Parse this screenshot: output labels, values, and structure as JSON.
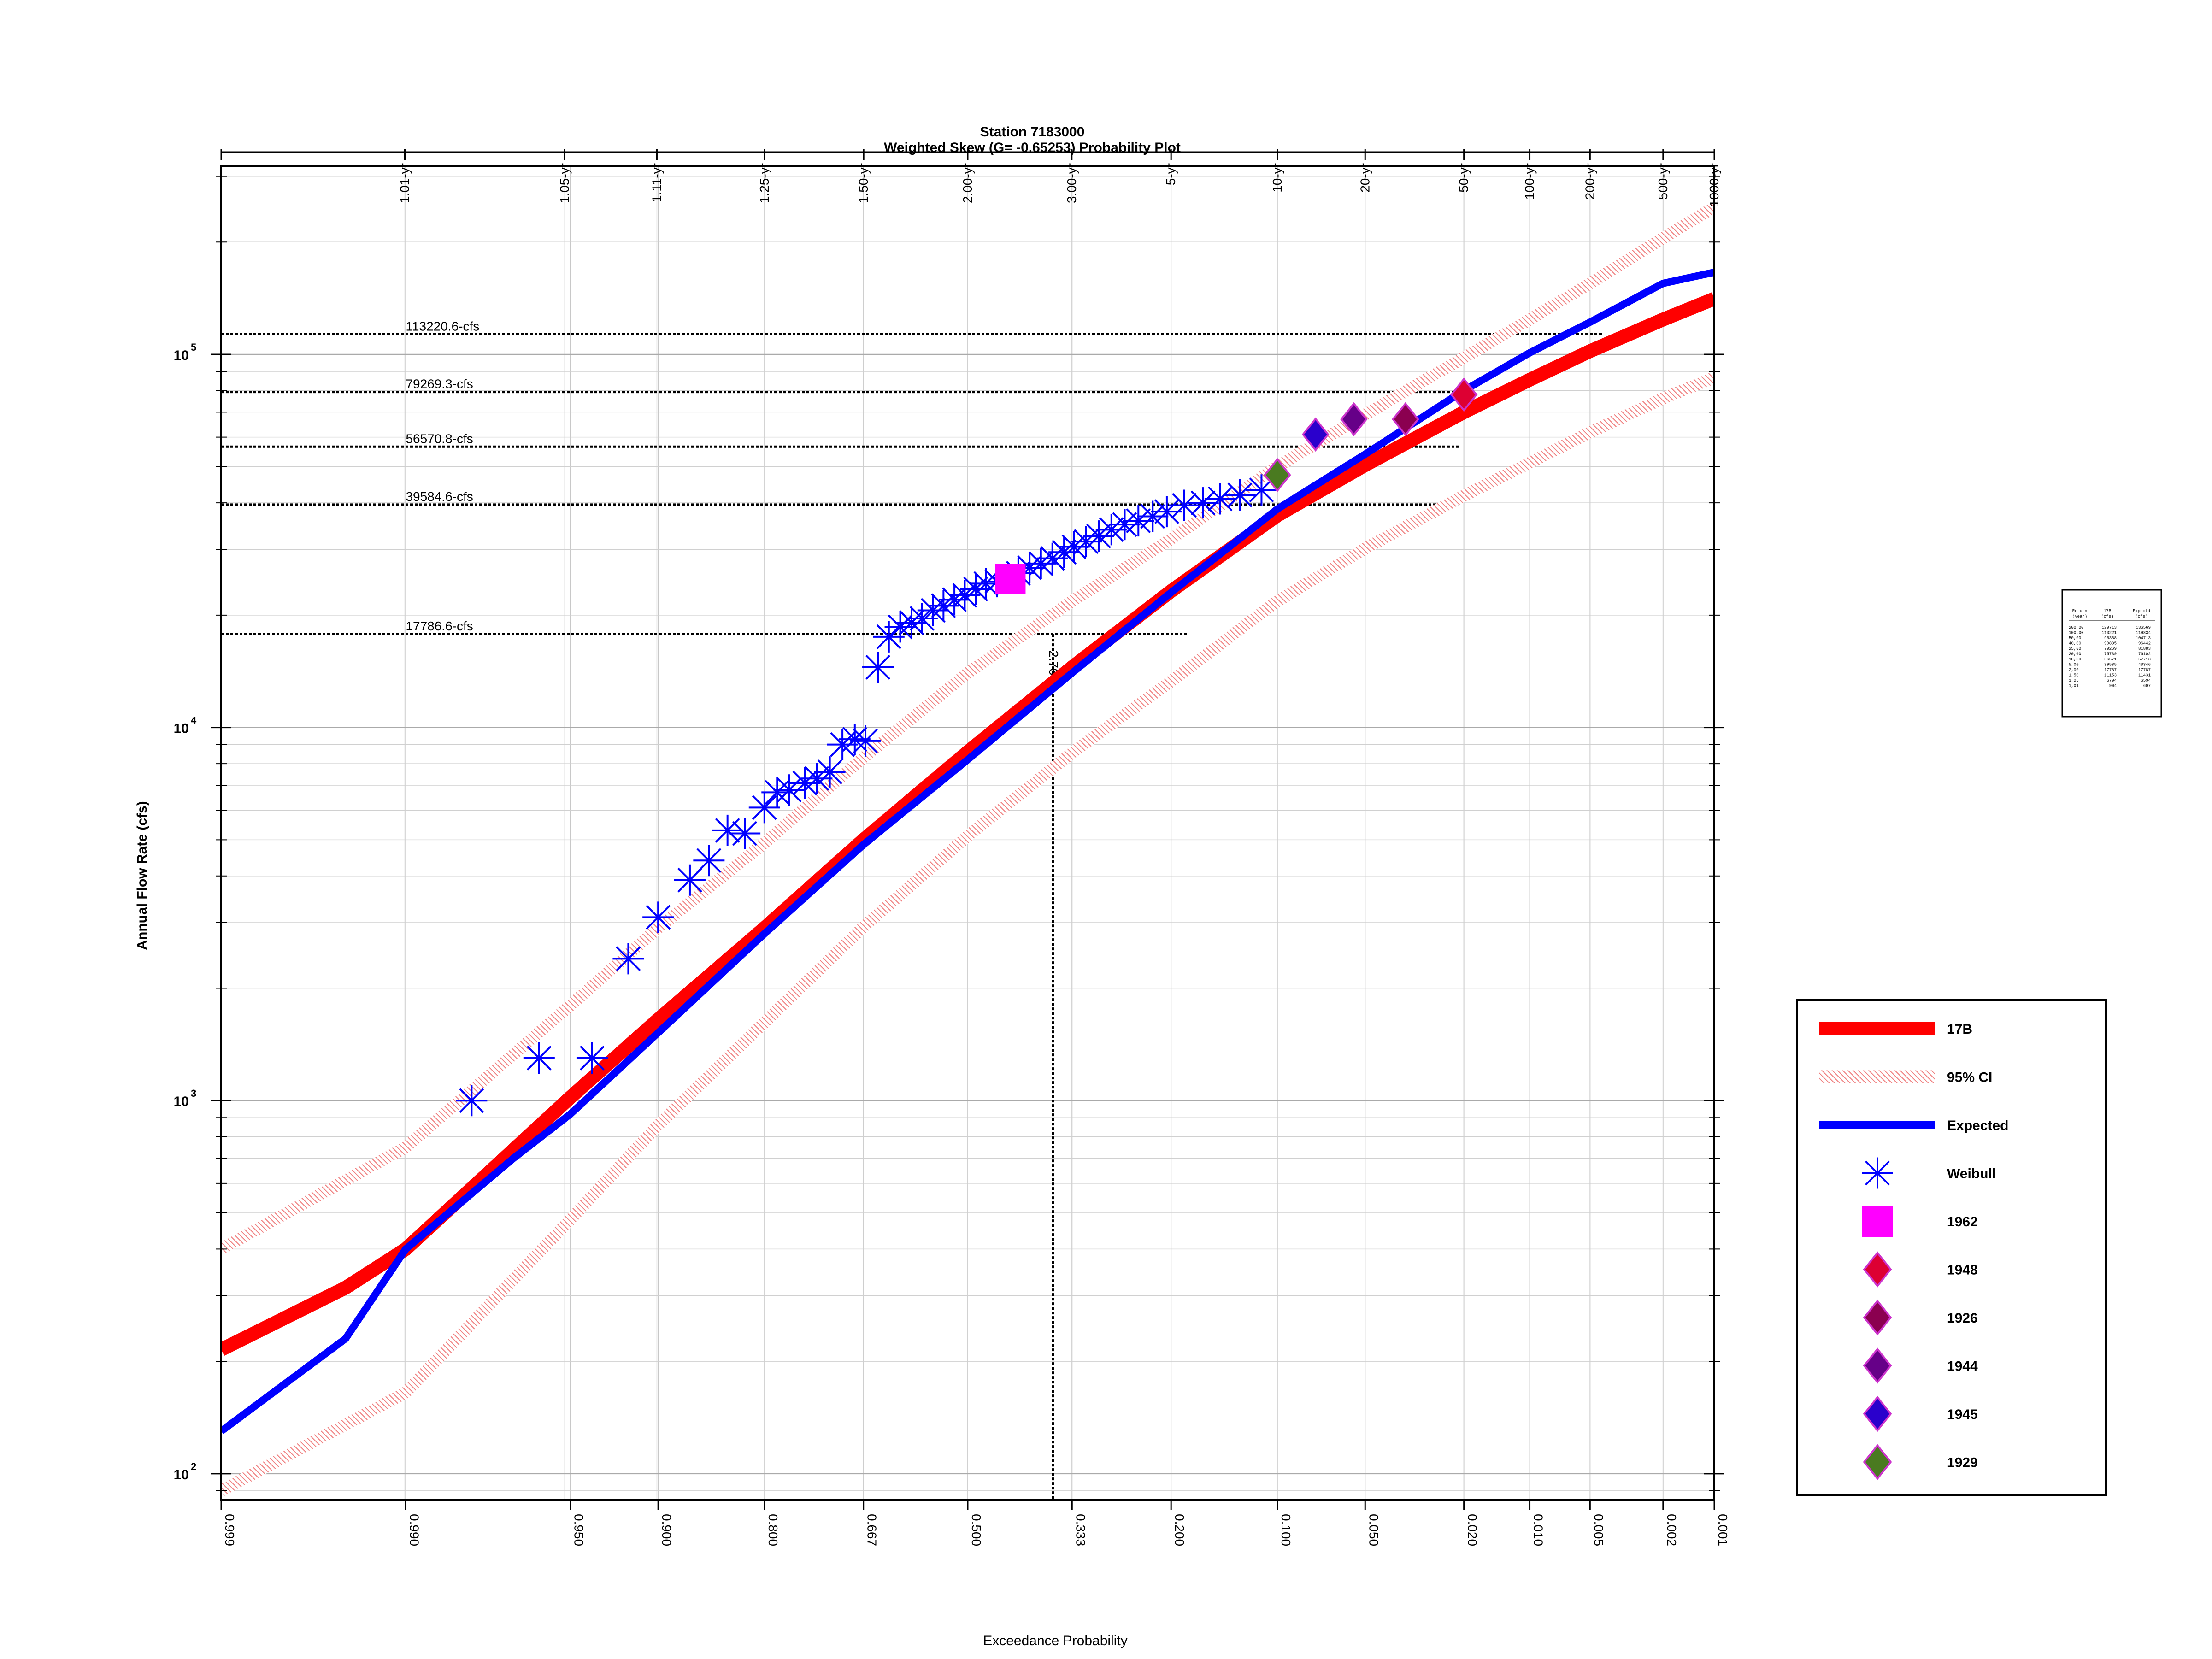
{
  "chart_data": {
    "type": "scatter",
    "title": "Station 7183000",
    "subtitle": "Weighted Skew (G= -0.65253) Probability Plot",
    "xlabel": "Exceedance Probability",
    "ylabel": "Annual Flow Rate (cfs)",
    "y_scale": "log",
    "ylim": [
      85,
      320000
    ],
    "x_scale": "normal-probability (reversed)",
    "xlim": [
      0.999,
      0.001
    ],
    "x_ticks": [
      {
        "p": 0.999,
        "label": "0.999"
      },
      {
        "p": 0.99,
        "label": "0.990"
      },
      {
        "p": 0.95,
        "label": "0.950"
      },
      {
        "p": 0.9,
        "label": "0.900"
      },
      {
        "p": 0.8,
        "label": "0.800"
      },
      {
        "p": 0.667,
        "label": "0.667"
      },
      {
        "p": 0.5,
        "label": "0.500"
      },
      {
        "p": 0.333,
        "label": "0.333"
      },
      {
        "p": 0.2,
        "label": "0.200"
      },
      {
        "p": 0.1,
        "label": "0.100"
      },
      {
        "p": 0.05,
        "label": "0.050"
      },
      {
        "p": 0.02,
        "label": "0.020"
      },
      {
        "p": 0.01,
        "label": "0.010"
      },
      {
        "p": 0.005,
        "label": "0.005"
      },
      {
        "p": 0.002,
        "label": "0.002"
      },
      {
        "p": 0.001,
        "label": "0.001"
      }
    ],
    "return_period_ticks": [
      {
        "p": 0.990099,
        "label": "1.01-yr"
      },
      {
        "p": 0.952381,
        "label": "1.05-yr"
      },
      {
        "p": 0.9009,
        "label": "1.11-yr"
      },
      {
        "p": 0.8,
        "label": "1.25-yr"
      },
      {
        "p": 0.666667,
        "label": "1.50-yr"
      },
      {
        "p": 0.5,
        "label": "2.00-yr"
      },
      {
        "p": 0.333333,
        "label": "3.00-yr"
      },
      {
        "p": 0.2,
        "label": "5-yr"
      },
      {
        "p": 0.1,
        "label": "10-yr"
      },
      {
        "p": 0.05,
        "label": "20-yr"
      },
      {
        "p": 0.02,
        "label": "50-yr"
      },
      {
        "p": 0.01,
        "label": "100-yr"
      },
      {
        "p": 0.005,
        "label": "200-yr"
      },
      {
        "p": 0.002,
        "label": "500-yr"
      },
      {
        "p": 0.001,
        "label": "1000-yr"
      }
    ],
    "y_ticks": [
      {
        "v": 100,
        "base": "10",
        "exp": "2"
      },
      {
        "v": 1000,
        "base": "10",
        "exp": "3"
      },
      {
        "v": 10000,
        "base": "10",
        "exp": "4"
      },
      {
        "v": 100000,
        "base": "10",
        "exp": "5"
      }
    ],
    "reference_lines": [
      {
        "value": 113220.6,
        "label": "113220.6-cfs"
      },
      {
        "value": 79269.3,
        "label": "79269.3-cfs"
      },
      {
        "value": 56570.8,
        "label": "56570.8-cfs"
      },
      {
        "value": 39584.6,
        "label": "39584.6-cfs"
      },
      {
        "value": 17786.6,
        "label": "17786.6-cfs"
      }
    ],
    "vertical_marker": {
      "p": 0.362,
      "value": 17786.6,
      "label": "2.76-yr"
    },
    "series": [
      {
        "name": "17B",
        "kind": "line",
        "color": "#ff0000",
        "points": [
          [
            0.999,
            215
          ],
          [
            0.995,
            315
          ],
          [
            0.99,
            400
          ],
          [
            0.95,
            1020
          ],
          [
            0.9,
            1650
          ],
          [
            0.8,
            2900
          ],
          [
            0.667,
            5000
          ],
          [
            0.5,
            8600
          ],
          [
            0.333,
            14500
          ],
          [
            0.2,
            23200
          ],
          [
            0.1,
            37000
          ],
          [
            0.05,
            50500
          ],
          [
            0.02,
            70000
          ],
          [
            0.01,
            85500
          ],
          [
            0.005,
            102000
          ],
          [
            0.002,
            124000
          ],
          [
            0.001,
            141000
          ]
        ]
      },
      {
        "name": "95% CI",
        "kind": "band",
        "color": "#f4a6a6",
        "upper": [
          [
            0.999,
            400
          ],
          [
            0.99,
            750
          ],
          [
            0.95,
            1800
          ],
          [
            0.9,
            2900
          ],
          [
            0.8,
            4900
          ],
          [
            0.667,
            8300
          ],
          [
            0.5,
            14000
          ],
          [
            0.333,
            21800
          ],
          [
            0.2,
            32000
          ],
          [
            0.1,
            50000
          ],
          [
            0.05,
            69000
          ],
          [
            0.02,
            98000
          ],
          [
            0.01,
            124000
          ],
          [
            0.005,
            155000
          ],
          [
            0.002,
            205000
          ],
          [
            0.001,
            248000
          ]
        ],
        "lower": [
          [
            0.999,
            90
          ],
          [
            0.99,
            165
          ],
          [
            0.95,
            480
          ],
          [
            0.9,
            860
          ],
          [
            0.8,
            1620
          ],
          [
            0.667,
            2920
          ],
          [
            0.5,
            5120
          ],
          [
            0.333,
            8550
          ],
          [
            0.2,
            13300
          ],
          [
            0.1,
            21800
          ],
          [
            0.05,
            30200
          ],
          [
            0.02,
            41800
          ],
          [
            0.01,
            51200
          ],
          [
            0.005,
            61800
          ],
          [
            0.002,
            76200
          ],
          [
            0.001,
            86700
          ]
        ]
      },
      {
        "name": "Expected",
        "kind": "line",
        "color": "#0000ff",
        "points": [
          [
            0.999,
            130
          ],
          [
            0.995,
            230
          ],
          [
            0.99,
            400
          ],
          [
            0.97,
            700
          ],
          [
            0.95,
            920
          ],
          [
            0.9,
            1520
          ],
          [
            0.8,
            2800
          ],
          [
            0.667,
            4850
          ],
          [
            0.5,
            8200
          ],
          [
            0.333,
            14000
          ],
          [
            0.2,
            23000
          ],
          [
            0.1,
            38500
          ],
          [
            0.05,
            54000
          ],
          [
            0.02,
            80000
          ],
          [
            0.01,
            101000
          ],
          [
            0.005,
            122000
          ],
          [
            0.002,
            155000
          ],
          [
            0.001,
            166000
          ]
        ]
      },
      {
        "name": "Weibull",
        "kind": "points",
        "color": "#0000ff",
        "points": [
          [
            0.98,
            1000
          ],
          [
            0.962,
            1300
          ],
          [
            0.94,
            1300
          ],
          [
            0.92,
            2400
          ],
          [
            0.9,
            3100
          ],
          [
            0.875,
            3900
          ],
          [
            0.858,
            4400
          ],
          [
            0.84,
            5300
          ],
          [
            0.822,
            5200
          ],
          [
            0.8,
            6100
          ],
          [
            0.785,
            6700
          ],
          [
            0.77,
            6800
          ],
          [
            0.75,
            7100
          ],
          [
            0.734,
            7300
          ],
          [
            0.716,
            7600
          ],
          [
            0.698,
            9000
          ],
          [
            0.68,
            9300
          ],
          [
            0.664,
            9200
          ],
          [
            0.645,
            14500
          ],
          [
            0.628,
            17500
          ],
          [
            0.61,
            18600
          ],
          [
            0.592,
            19100
          ],
          [
            0.575,
            19600
          ],
          [
            0.557,
            20600
          ],
          [
            0.54,
            21200
          ],
          [
            0.522,
            22000
          ],
          [
            0.505,
            22600
          ],
          [
            0.487,
            23500
          ],
          [
            0.47,
            24300
          ],
          [
            0.452,
            24600
          ],
          [
            0.434,
            25200
          ],
          [
            0.417,
            25900
          ],
          [
            0.399,
            26800
          ],
          [
            0.381,
            27500
          ],
          [
            0.363,
            28400
          ],
          [
            0.345,
            29500
          ],
          [
            0.33,
            30500
          ],
          [
            0.312,
            31500
          ],
          [
            0.294,
            32600
          ],
          [
            0.276,
            33900
          ],
          [
            0.258,
            35000
          ],
          [
            0.24,
            35800
          ],
          [
            0.222,
            36800
          ],
          [
            0.205,
            37900
          ],
          [
            0.185,
            39400
          ],
          [
            0.165,
            40000
          ],
          [
            0.148,
            41000
          ],
          [
            0.13,
            42000
          ],
          [
            0.112,
            43300
          ]
        ]
      },
      {
        "name": "1962",
        "kind": "marker",
        "shape": "square",
        "color": "#ff00ff",
        "points": [
          [
            0.43,
            25000
          ]
        ]
      },
      {
        "name": "1948",
        "kind": "marker",
        "shape": "diamond",
        "color": "#dd0033",
        "points": [
          [
            0.02,
            78000
          ]
        ]
      },
      {
        "name": "1926",
        "kind": "marker",
        "shape": "diamond",
        "color": "#8b0050",
        "points": [
          [
            0.035,
            67000
          ]
        ]
      },
      {
        "name": "1944",
        "kind": "marker",
        "shape": "diamond",
        "color": "#660088",
        "points": [
          [
            0.055,
            67000
          ]
        ]
      },
      {
        "name": "1945",
        "kind": "marker",
        "shape": "diamond",
        "color": "#2a00cc",
        "points": [
          [
            0.075,
            61000
          ]
        ]
      },
      {
        "name": "1929",
        "kind": "marker",
        "shape": "diamond",
        "color": "#4a7a20",
        "points": [
          [
            0.1,
            47500
          ]
        ]
      }
    ],
    "legend": {
      "placement": "right",
      "entries": [
        {
          "label": "17B",
          "type": "thick-line",
          "color": "#ff0000"
        },
        {
          "label": "95% CI",
          "type": "hatched-line",
          "color": "#f4a6a6"
        },
        {
          "label": "Expected",
          "type": "line",
          "color": "#0000ff"
        },
        {
          "label": "Weibull",
          "type": "asterisk",
          "color": "#0000ff"
        },
        {
          "label": "1962",
          "type": "square",
          "color": "#ff00ff"
        },
        {
          "label": "1948",
          "type": "diamond",
          "color": "#dd0033"
        },
        {
          "label": "1926",
          "type": "diamond",
          "color": "#8b0050"
        },
        {
          "label": "1944",
          "type": "diamond",
          "color": "#660088"
        },
        {
          "label": "1945",
          "type": "diamond",
          "color": "#2a00cc"
        },
        {
          "label": "1929",
          "type": "diamond",
          "color": "#4a7a20"
        }
      ]
    },
    "summary_table": {
      "header": [
        "Return",
        "17B",
        "Expectd"
      ],
      "header2": [
        "(year)",
        "(cfs)",
        "(cfs)"
      ],
      "rows": [
        [
          "200,00",
          "129713",
          "136569"
        ],
        [
          "100,00",
          "113221",
          "119834"
        ],
        [
          "50,00",
          "96368",
          "104713"
        ],
        [
          "40,00",
          "90885",
          "96442"
        ],
        [
          "25,00",
          "79269",
          "81883"
        ],
        [
          "20,00",
          "75739",
          "76102"
        ],
        [
          "10,00",
          "56571",
          "57713"
        ],
        [
          "5,00",
          "39585",
          "40346"
        ],
        [
          "2,00",
          "17787",
          "17787"
        ],
        [
          "1,50",
          "11153",
          "11431"
        ],
        [
          "1,25",
          "6794",
          "6594"
        ],
        [
          "1,01",
          "904",
          "697"
        ]
      ]
    }
  }
}
